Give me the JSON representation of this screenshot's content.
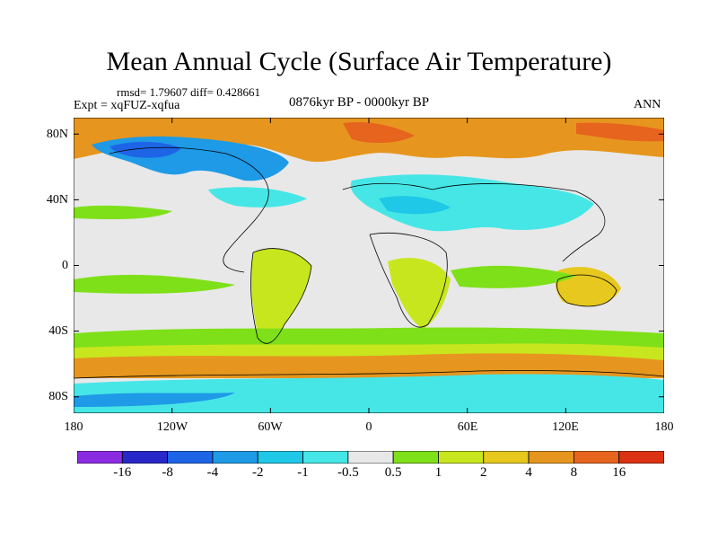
{
  "header": {
    "title": "Mean Annual Cycle (Surface Air Temperature)",
    "stats": "rmsd= 1.79607 diff= 0.428661",
    "experiment": "Expt = xqFUZ-xqfua",
    "period": "0876kyr BP - 0000kyr BP",
    "season": "ANN"
  },
  "map": {
    "lat_ticks": [
      "80N",
      "40N",
      "0",
      "40S",
      "80S"
    ],
    "lat_values": [
      80,
      40,
      0,
      -40,
      -80
    ],
    "lon_ticks": [
      "180",
      "120W",
      "60W",
      "0",
      "60E",
      "120E",
      "180"
    ],
    "lon_values": [
      -180,
      -120,
      -60,
      0,
      60,
      120,
      180
    ],
    "lat_range": [
      -90,
      90
    ],
    "lon_range": [
      -180,
      180
    ]
  },
  "colorbar": {
    "labels": [
      "-16",
      "-8",
      "-4",
      "-2",
      "-1",
      "-0.5",
      "0.5",
      "1",
      "2",
      "4",
      "8",
      "16"
    ],
    "colors": [
      "#8a2be2",
      "#2828c8",
      "#1e64e6",
      "#1e9ae6",
      "#1ec8e6",
      "#46e6e6",
      "#e8e8e8",
      "#7ee018",
      "#c8e61e",
      "#e6c81e",
      "#e6961e",
      "#e6641e",
      "#dc3214"
    ]
  }
}
